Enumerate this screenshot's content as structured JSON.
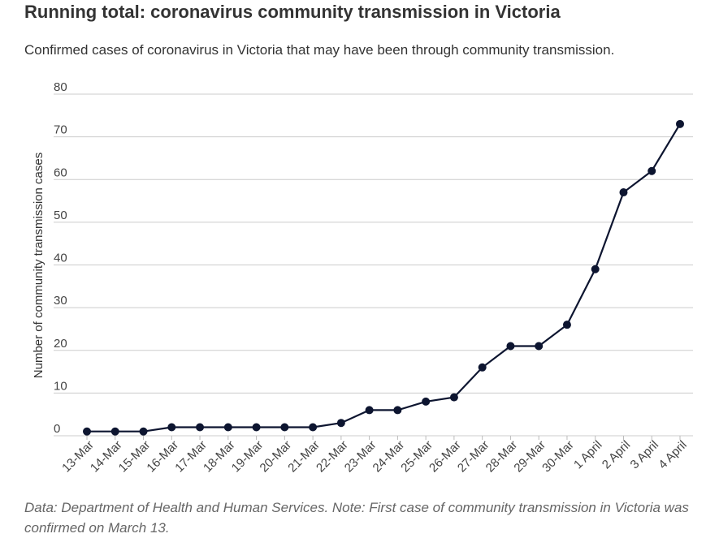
{
  "header": {
    "title": "Running total: coronavirus community transmission in Victoria",
    "subtitle": "Confirmed cases of coronavirus in Victoria that may have been through community transmission."
  },
  "footer": {
    "note": "Data: Department of Health and Human Services. Note: First case of community transmission in Victoria was confirmed on March 13."
  },
  "chart_data": {
    "type": "line",
    "title": "Running total: coronavirus community transmission in Victoria",
    "subtitle": "Confirmed cases of coronavirus in Victoria that may have been through community transmission.",
    "xlabel": "",
    "ylabel": "Number of community transmission cases",
    "ylim": [
      0,
      80
    ],
    "yticks": [
      0,
      10,
      20,
      30,
      40,
      50,
      60,
      70,
      80
    ],
    "grid": true,
    "line_color": "#0d1530",
    "categories": [
      "13-Mar",
      "14-Mar",
      "15-Mar",
      "16-Mar",
      "17-Mar",
      "18-Mar",
      "19-Mar",
      "20-Mar",
      "21-Mar",
      "22-Mar",
      "23-Mar",
      "24-Mar",
      "25-Mar",
      "26-Mar",
      "27-Mar",
      "28-Mar",
      "29-Mar",
      "30-Mar",
      "1 April",
      "2 April",
      "3 April",
      "4 April"
    ],
    "values": [
      1,
      1,
      1,
      2,
      2,
      2,
      2,
      2,
      2,
      3,
      6,
      6,
      8,
      9,
      16,
      21,
      21,
      26,
      39,
      57,
      62,
      73
    ]
  }
}
